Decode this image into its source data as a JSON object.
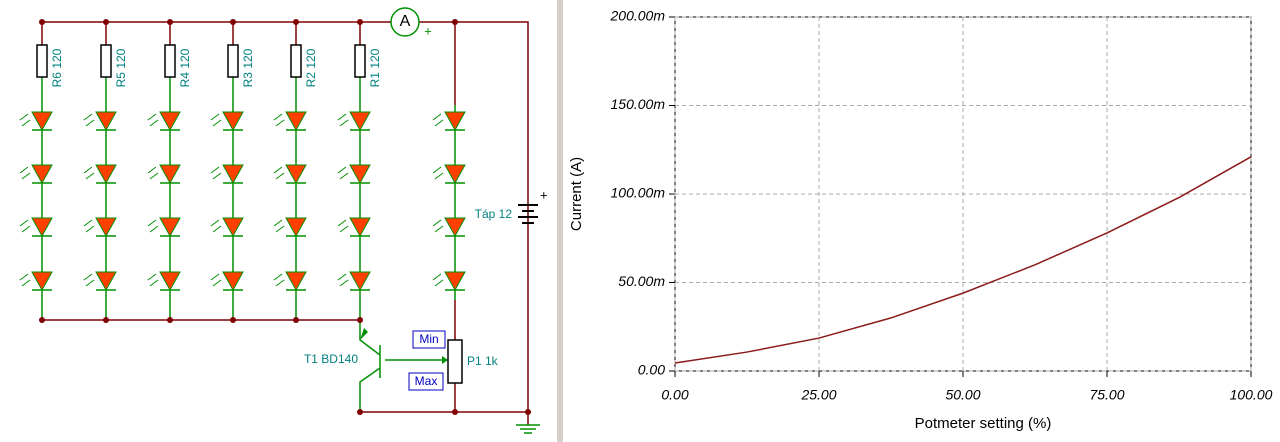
{
  "circuit": {
    "resistors": [
      "R6 120",
      "R5 120",
      "R4 120",
      "R3 120",
      "R2 120",
      "R1 120"
    ],
    "meter": "A",
    "meter_plus": "+",
    "battery": "Táp 12",
    "battery_plus": "+",
    "transistor": "T1 BD140",
    "pot": "P1 1k",
    "pot_min": "Min",
    "pot_max": "Max"
  },
  "chart_data": {
    "type": "line",
    "x_label": "Potmeter setting (%)",
    "y_label": "Current (A)",
    "x": [
      0,
      12.5,
      25,
      37.5,
      50,
      62.5,
      75,
      87.5,
      100
    ],
    "values": [
      0.0045,
      0.0107,
      0.0186,
      0.03,
      0.044,
      0.06,
      0.078,
      0.098,
      0.121
    ],
    "color": "#8b1a1a",
    "xlim": [
      0,
      100
    ],
    "xticks": [
      {
        "value": 0,
        "label": "0.00"
      },
      {
        "value": 25,
        "label": "25.00"
      },
      {
        "value": 50,
        "label": "50.00"
      },
      {
        "value": 75,
        "label": "75.00"
      },
      {
        "value": 100,
        "label": "100.00"
      }
    ],
    "ylim": [
      0,
      0.2
    ],
    "yticks": [
      {
        "value": 0,
        "label": "0.00"
      },
      {
        "value": 0.05,
        "label": "50.00m"
      },
      {
        "value": 0.1,
        "label": "100.00m"
      },
      {
        "value": 0.15,
        "label": "150.00m"
      },
      {
        "value": 0.2,
        "label": "200.00m"
      }
    ],
    "grid": true
  }
}
